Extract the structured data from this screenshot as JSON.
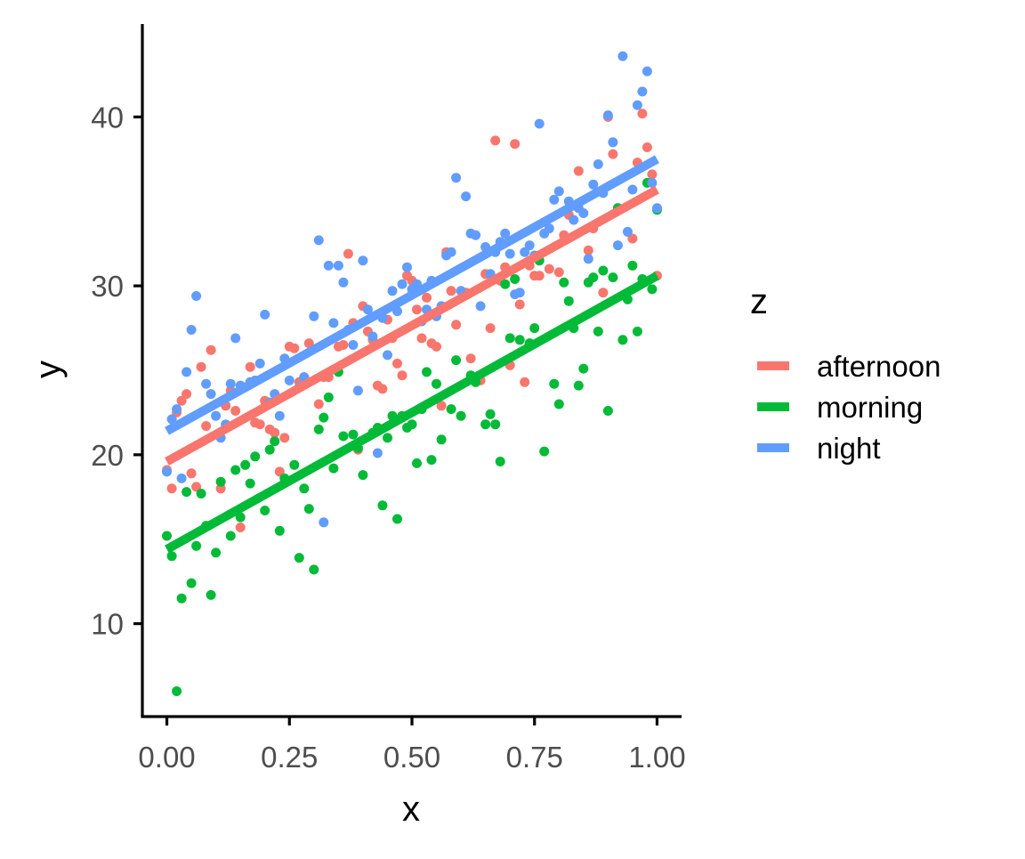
{
  "chart_data": {
    "type": "scatter",
    "xlabel": "x",
    "ylabel": "y",
    "xlim": [
      -0.05,
      1.05
    ],
    "ylim": [
      4.5,
      45.5
    ],
    "x_ticks": [
      0,
      0.25,
      0.5,
      0.75,
      1
    ],
    "x_tick_labels": [
      "0.00",
      "0.25",
      "0.50",
      "0.75",
      "1.00"
    ],
    "y_ticks": [
      10,
      20,
      30,
      40
    ],
    "y_tick_labels": [
      "10",
      "20",
      "30",
      "40"
    ],
    "grid": false,
    "legend": {
      "title": "z",
      "position": "right"
    },
    "series": [
      {
        "name": "afternoon",
        "color": "#F8766D",
        "fit": {
          "x": [
            0,
            1
          ],
          "y": [
            19.6,
            35.7
          ]
        },
        "points": [
          [
            0.0,
            19.1
          ],
          [
            0.01,
            18.0
          ],
          [
            0.02,
            22.5
          ],
          [
            0.03,
            23.2
          ],
          [
            0.04,
            23.6
          ],
          [
            0.05,
            18.9
          ],
          [
            0.06,
            18.1
          ],
          [
            0.07,
            25.2
          ],
          [
            0.08,
            21.7
          ],
          [
            0.09,
            26.2
          ],
          [
            0.11,
            18.0
          ],
          [
            0.12,
            22.9
          ],
          [
            0.13,
            23.8
          ],
          [
            0.14,
            22.6
          ],
          [
            0.15,
            15.7
          ],
          [
            0.16,
            24.0
          ],
          [
            0.17,
            25.2
          ],
          [
            0.18,
            21.9
          ],
          [
            0.19,
            21.8
          ],
          [
            0.2,
            23.2
          ],
          [
            0.21,
            21.5
          ],
          [
            0.22,
            21.3
          ],
          [
            0.23,
            19.0
          ],
          [
            0.24,
            21.0
          ],
          [
            0.25,
            26.4
          ],
          [
            0.26,
            26.3
          ],
          [
            0.27,
            24.3
          ],
          [
            0.28,
            24.6
          ],
          [
            0.29,
            26.6
          ],
          [
            0.31,
            23.0
          ],
          [
            0.32,
            24.6
          ],
          [
            0.33,
            24.6
          ],
          [
            0.35,
            26.4
          ],
          [
            0.36,
            26.5
          ],
          [
            0.37,
            31.9
          ],
          [
            0.38,
            27.8
          ],
          [
            0.39,
            20.3
          ],
          [
            0.4,
            28.8
          ],
          [
            0.41,
            27.3
          ],
          [
            0.42,
            26.8
          ],
          [
            0.43,
            24.1
          ],
          [
            0.44,
            23.9
          ],
          [
            0.45,
            28.0
          ],
          [
            0.46,
            26.9
          ],
          [
            0.47,
            25.4
          ],
          [
            0.48,
            24.7
          ],
          [
            0.49,
            30.6
          ],
          [
            0.5,
            30.3
          ],
          [
            0.51,
            28.6
          ],
          [
            0.52,
            26.9
          ],
          [
            0.53,
            29.3
          ],
          [
            0.54,
            26.6
          ],
          [
            0.55,
            26.4
          ],
          [
            0.56,
            22.9
          ],
          [
            0.57,
            32.0
          ],
          [
            0.58,
            29.7
          ],
          [
            0.59,
            27.7
          ],
          [
            0.61,
            29.6
          ],
          [
            0.62,
            25.7
          ],
          [
            0.63,
            24.5
          ],
          [
            0.64,
            24.4
          ],
          [
            0.65,
            30.7
          ],
          [
            0.66,
            27.5
          ],
          [
            0.67,
            38.6
          ],
          [
            0.68,
            30.3
          ],
          [
            0.69,
            31.1
          ],
          [
            0.7,
            25.3
          ],
          [
            0.71,
            38.4
          ],
          [
            0.72,
            28.9
          ],
          [
            0.73,
            24.3
          ],
          [
            0.74,
            31.2
          ],
          [
            0.75,
            30.6
          ],
          [
            0.76,
            30.6
          ],
          [
            0.78,
            31.0
          ],
          [
            0.8,
            30.8
          ],
          [
            0.81,
            33.0
          ],
          [
            0.82,
            34.2
          ],
          [
            0.84,
            36.8
          ],
          [
            0.86,
            32.1
          ],
          [
            0.87,
            33.4
          ],
          [
            0.89,
            29.6
          ],
          [
            0.9,
            40.0
          ],
          [
            0.91,
            37.8
          ],
          [
            0.92,
            34.6
          ],
          [
            0.95,
            32.8
          ],
          [
            0.96,
            37.3
          ],
          [
            0.97,
            40.2
          ],
          [
            0.98,
            38.2
          ],
          [
            0.99,
            36.6
          ],
          [
            1.0,
            30.6
          ]
        ]
      },
      {
        "name": "morning",
        "color": "#00BA38",
        "fit": {
          "x": [
            0,
            1
          ],
          "y": [
            14.4,
            30.6
          ]
        },
        "points": [
          [
            0.0,
            15.2
          ],
          [
            0.01,
            14.0
          ],
          [
            0.02,
            6.0
          ],
          [
            0.03,
            11.5
          ],
          [
            0.04,
            17.8
          ],
          [
            0.05,
            12.4
          ],
          [
            0.06,
            14.6
          ],
          [
            0.07,
            17.7
          ],
          [
            0.08,
            15.8
          ],
          [
            0.09,
            11.7
          ],
          [
            0.1,
            14.2
          ],
          [
            0.11,
            18.4
          ],
          [
            0.13,
            15.2
          ],
          [
            0.14,
            19.1
          ],
          [
            0.15,
            16.3
          ],
          [
            0.16,
            19.4
          ],
          [
            0.17,
            18.3
          ],
          [
            0.18,
            19.9
          ],
          [
            0.2,
            16.7
          ],
          [
            0.21,
            20.3
          ],
          [
            0.22,
            20.8
          ],
          [
            0.23,
            15.5
          ],
          [
            0.24,
            18.6
          ],
          [
            0.26,
            19.4
          ],
          [
            0.27,
            13.9
          ],
          [
            0.28,
            18.0
          ],
          [
            0.29,
            16.8
          ],
          [
            0.3,
            13.2
          ],
          [
            0.31,
            21.5
          ],
          [
            0.32,
            22.2
          ],
          [
            0.33,
            23.4
          ],
          [
            0.34,
            19.2
          ],
          [
            0.35,
            24.9
          ],
          [
            0.36,
            21.1
          ],
          [
            0.38,
            21.2
          ],
          [
            0.39,
            20.4
          ],
          [
            0.4,
            18.8
          ],
          [
            0.42,
            21.3
          ],
          [
            0.43,
            21.6
          ],
          [
            0.44,
            17.0
          ],
          [
            0.45,
            21.0
          ],
          [
            0.46,
            22.3
          ],
          [
            0.47,
            16.2
          ],
          [
            0.48,
            22.3
          ],
          [
            0.49,
            21.6
          ],
          [
            0.5,
            21.8
          ],
          [
            0.51,
            19.5
          ],
          [
            0.52,
            22.7
          ],
          [
            0.53,
            24.9
          ],
          [
            0.54,
            19.7
          ],
          [
            0.55,
            24.2
          ],
          [
            0.56,
            20.9
          ],
          [
            0.58,
            22.7
          ],
          [
            0.59,
            25.6
          ],
          [
            0.6,
            22.3
          ],
          [
            0.62,
            24.7
          ],
          [
            0.63,
            24.3
          ],
          [
            0.65,
            21.8
          ],
          [
            0.66,
            22.4
          ],
          [
            0.67,
            21.8
          ],
          [
            0.68,
            19.6
          ],
          [
            0.69,
            30.1
          ],
          [
            0.7,
            26.9
          ],
          [
            0.71,
            30.4
          ],
          [
            0.72,
            26.8
          ],
          [
            0.74,
            26.6
          ],
          [
            0.75,
            27.5
          ],
          [
            0.76,
            31.5
          ],
          [
            0.77,
            20.2
          ],
          [
            0.79,
            24.2
          ],
          [
            0.8,
            23.0
          ],
          [
            0.81,
            30.2
          ],
          [
            0.82,
            29.1
          ],
          [
            0.83,
            27.5
          ],
          [
            0.84,
            24.1
          ],
          [
            0.85,
            25.1
          ],
          [
            0.86,
            30.2
          ],
          [
            0.87,
            30.5
          ],
          [
            0.88,
            27.3
          ],
          [
            0.89,
            30.9
          ],
          [
            0.9,
            22.6
          ],
          [
            0.91,
            30.5
          ],
          [
            0.92,
            34.6
          ],
          [
            0.93,
            26.8
          ],
          [
            0.94,
            29.2
          ],
          [
            0.95,
            31.2
          ],
          [
            0.96,
            27.3
          ],
          [
            0.97,
            30.4
          ],
          [
            0.98,
            36.1
          ],
          [
            0.99,
            29.8
          ],
          [
            1.0,
            34.5
          ]
        ]
      },
      {
        "name": "night",
        "color": "#619CFF",
        "fit": {
          "x": [
            0,
            1
          ],
          "y": [
            21.4,
            37.5
          ]
        },
        "points": [
          [
            0.0,
            19.0
          ],
          [
            0.01,
            22.1
          ],
          [
            0.02,
            22.7
          ],
          [
            0.03,
            18.6
          ],
          [
            0.04,
            24.9
          ],
          [
            0.05,
            27.4
          ],
          [
            0.06,
            29.4
          ],
          [
            0.08,
            24.2
          ],
          [
            0.09,
            23.6
          ],
          [
            0.1,
            22.3
          ],
          [
            0.11,
            21.0
          ],
          [
            0.12,
            21.8
          ],
          [
            0.13,
            24.2
          ],
          [
            0.14,
            26.9
          ],
          [
            0.15,
            24.1
          ],
          [
            0.17,
            24.3
          ],
          [
            0.18,
            24.4
          ],
          [
            0.19,
            25.4
          ],
          [
            0.2,
            28.3
          ],
          [
            0.21,
            23.1
          ],
          [
            0.22,
            23.6
          ],
          [
            0.23,
            22.3
          ],
          [
            0.24,
            25.7
          ],
          [
            0.25,
            24.4
          ],
          [
            0.27,
            24.0
          ],
          [
            0.28,
            24.6
          ],
          [
            0.3,
            28.2
          ],
          [
            0.31,
            32.7
          ],
          [
            0.32,
            16.0
          ],
          [
            0.33,
            31.2
          ],
          [
            0.34,
            27.8
          ],
          [
            0.35,
            31.2
          ],
          [
            0.36,
            30.2
          ],
          [
            0.37,
            27.4
          ],
          [
            0.38,
            26.5
          ],
          [
            0.39,
            23.8
          ],
          [
            0.4,
            31.5
          ],
          [
            0.41,
            28.6
          ],
          [
            0.42,
            27.0
          ],
          [
            0.43,
            20.1
          ],
          [
            0.44,
            28.1
          ],
          [
            0.45,
            25.9
          ],
          [
            0.46,
            29.7
          ],
          [
            0.47,
            28.5
          ],
          [
            0.48,
            30.1
          ],
          [
            0.49,
            31.1
          ],
          [
            0.5,
            29.8
          ],
          [
            0.51,
            30.1
          ],
          [
            0.52,
            27.9
          ],
          [
            0.53,
            28.6
          ],
          [
            0.54,
            30.3
          ],
          [
            0.55,
            28.2
          ],
          [
            0.56,
            28.8
          ],
          [
            0.57,
            31.8
          ],
          [
            0.58,
            32.0
          ],
          [
            0.59,
            36.4
          ],
          [
            0.6,
            29.7
          ],
          [
            0.61,
            35.3
          ],
          [
            0.62,
            33.1
          ],
          [
            0.63,
            33.0
          ],
          [
            0.64,
            28.8
          ],
          [
            0.65,
            32.3
          ],
          [
            0.66,
            30.7
          ],
          [
            0.67,
            32.0
          ],
          [
            0.68,
            32.6
          ],
          [
            0.69,
            33.1
          ],
          [
            0.7,
            31.9
          ],
          [
            0.71,
            29.5
          ],
          [
            0.72,
            29.6
          ],
          [
            0.73,
            32.0
          ],
          [
            0.74,
            32.4
          ],
          [
            0.75,
            31.8
          ],
          [
            0.76,
            39.6
          ],
          [
            0.77,
            33.1
          ],
          [
            0.78,
            33.4
          ],
          [
            0.79,
            35.1
          ],
          [
            0.8,
            35.6
          ],
          [
            0.82,
            35.0
          ],
          [
            0.83,
            33.9
          ],
          [
            0.84,
            34.6
          ],
          [
            0.85,
            34.3
          ],
          [
            0.86,
            31.6
          ],
          [
            0.87,
            36.0
          ],
          [
            0.88,
            37.2
          ],
          [
            0.89,
            35.5
          ],
          [
            0.9,
            40.1
          ],
          [
            0.91,
            38.5
          ],
          [
            0.92,
            32.4
          ],
          [
            0.93,
            43.6
          ],
          [
            0.94,
            33.2
          ],
          [
            0.95,
            35.7
          ],
          [
            0.96,
            40.7
          ],
          [
            0.97,
            41.5
          ],
          [
            0.98,
            42.7
          ],
          [
            0.99,
            36.1
          ],
          [
            1.0,
            34.6
          ]
        ]
      }
    ]
  }
}
